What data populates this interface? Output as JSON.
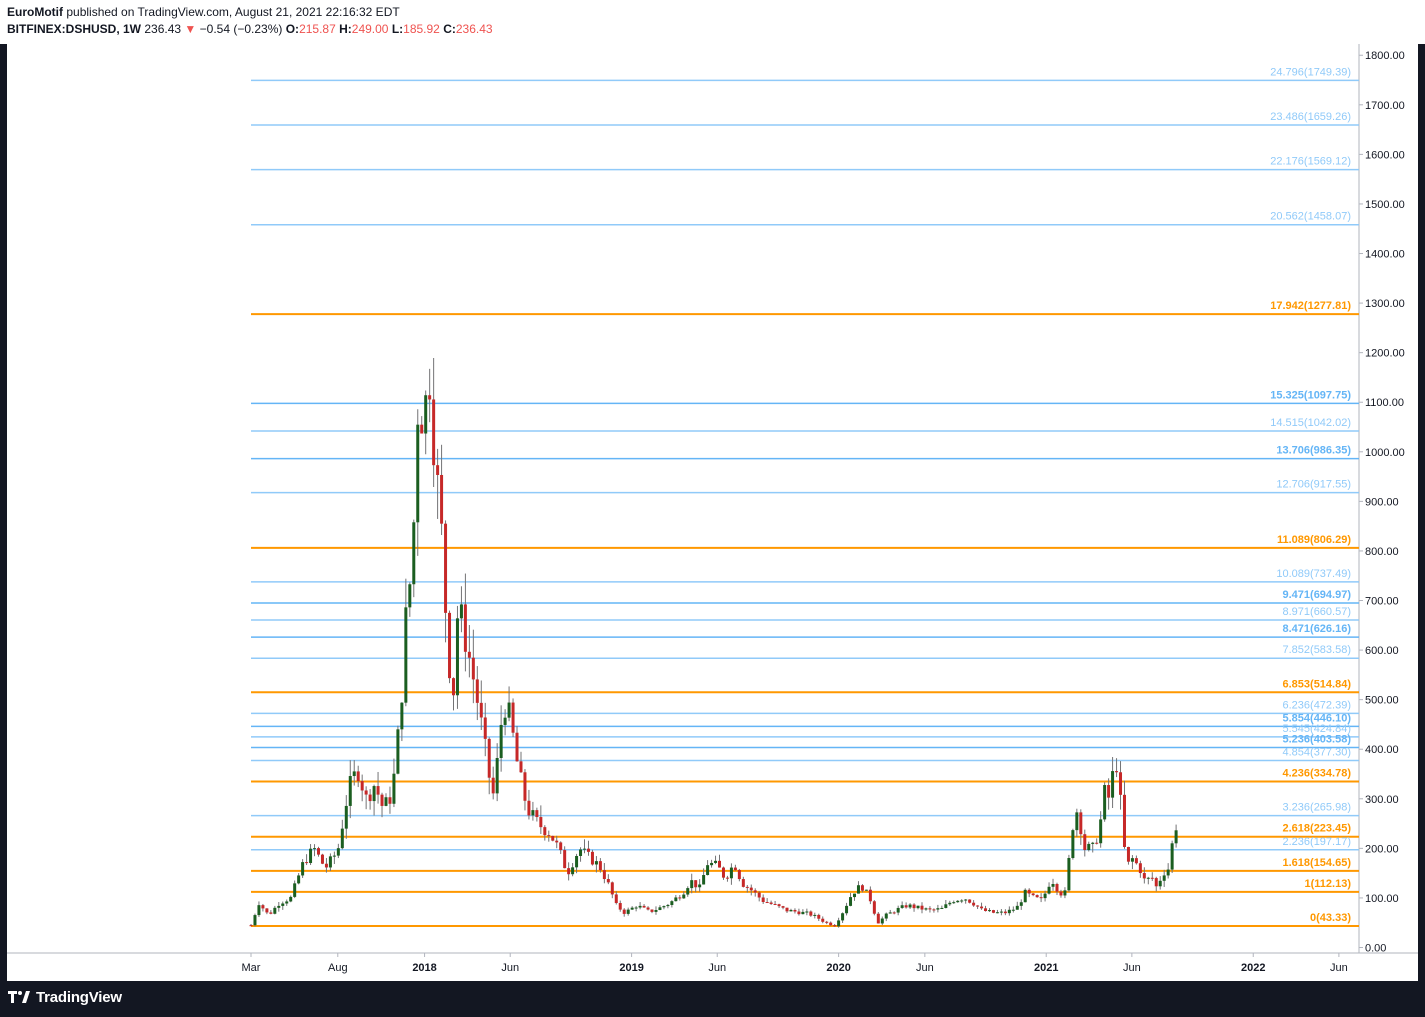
{
  "header": {
    "author": "EuroMotif",
    "published_text": "published on TradingView.com, August 21, 2021 22:16:32 EDT",
    "symbol": "BITFINEX:DSHUSD, 1W",
    "last": "236.43",
    "change_arrow": "▼",
    "change": "−0.54 (−0.23%)",
    "open_label": "O:",
    "open": "215.87",
    "high_label": "H:",
    "high": "249.00",
    "low_label": "L:",
    "low": "185.92",
    "close_label": "C:",
    "close": "236.43"
  },
  "footer": {
    "brand": "TradingView"
  },
  "colors": {
    "up": "#26a69a",
    "down": "#ef5350",
    "candle_up": "#1b5e20",
    "candle_down": "#c62828",
    "orange": "#ff9800",
    "blue": "#90caf9",
    "blue_dark": "#64b5f6"
  },
  "chart_data": {
    "type": "candlestick",
    "symbol": "BITFINEX:DSHUSD",
    "interval": "1W",
    "y_axis": {
      "min": 0,
      "max": 1800,
      "ticks": [
        "0.00",
        "100.00",
        "200.00",
        "300.00",
        "400.00",
        "500.00",
        "600.00",
        "700.00",
        "800.00",
        "900.00",
        "1000.00",
        "1100.00",
        "1200.00",
        "1300.00",
        "1400.00",
        "1500.00",
        "1600.00",
        "1700.00",
        "1800.00"
      ]
    },
    "x_axis": {
      "labels": [
        "Mar",
        "Aug",
        "2018",
        "Jun",
        "2019",
        "Jun",
        "2020",
        "Jun",
        "2021",
        "Jun",
        "2022",
        "Jun"
      ],
      "label_dates": [
        "2017-03-01",
        "2017-08-01",
        "2018-01-01",
        "2018-06-01",
        "2019-01-01",
        "2019-06-01",
        "2020-01-01",
        "2020-06-01",
        "2021-01-01",
        "2021-06-01",
        "2022-01-01",
        "2022-06-01"
      ]
    },
    "fib_levels": [
      {
        "label": "24.796(1749.39)",
        "value": 1749.39,
        "color": "blue"
      },
      {
        "label": "23.486(1659.26)",
        "value": 1659.26,
        "color": "blue"
      },
      {
        "label": "22.176(1569.12)",
        "value": 1569.12,
        "color": "blue"
      },
      {
        "label": "20.562(1458.07)",
        "value": 1458.07,
        "color": "blue"
      },
      {
        "label": "17.942(1277.81)",
        "value": 1277.81,
        "color": "orange"
      },
      {
        "label": "15.325(1097.75)",
        "value": 1097.75,
        "color": "blue_dark"
      },
      {
        "label": "14.515(1042.02)",
        "value": 1042.02,
        "color": "blue"
      },
      {
        "label": "13.706(986.35)",
        "value": 986.35,
        "color": "blue_dark"
      },
      {
        "label": "12.706(917.55)",
        "value": 917.55,
        "color": "blue"
      },
      {
        "label": "11.089(806.29)",
        "value": 806.29,
        "color": "orange"
      },
      {
        "label": "10.089(737.49)",
        "value": 737.49,
        "color": "blue"
      },
      {
        "label": "9.471(694.97)",
        "value": 694.97,
        "color": "blue_dark"
      },
      {
        "label": "8.971(660.57)",
        "value": 660.57,
        "color": "blue"
      },
      {
        "label": "8.471(626.16)",
        "value": 626.16,
        "color": "blue_dark"
      },
      {
        "label": "7.852(583.58)",
        "value": 583.58,
        "color": "blue"
      },
      {
        "label": "6.853(514.84)",
        "value": 514.84,
        "color": "orange"
      },
      {
        "label": "6.236(472.39)",
        "value": 472.39,
        "color": "blue"
      },
      {
        "label": "5.854(446.10)",
        "value": 446.1,
        "color": "blue_dark"
      },
      {
        "label": "5.545(424.84)",
        "value": 424.84,
        "color": "blue"
      },
      {
        "label": "5.236(403.58)",
        "value": 403.58,
        "color": "blue_dark"
      },
      {
        "label": "4.854(377.30)",
        "value": 377.3,
        "color": "blue"
      },
      {
        "label": "4.236(334.78)",
        "value": 334.78,
        "color": "orange"
      },
      {
        "label": "3.236(265.98)",
        "value": 265.98,
        "color": "blue"
      },
      {
        "label": "2.618(223.45)",
        "value": 223.45,
        "color": "orange"
      },
      {
        "label": "2.236(197.17)",
        "value": 197.17,
        "color": "blue"
      },
      {
        "label": "1.618(154.65)",
        "value": 154.65,
        "color": "orange"
      },
      {
        "label": "1(112.13)",
        "value": 112.13,
        "color": "orange"
      },
      {
        "label": "0(43.33)",
        "value": 43.33,
        "color": "orange"
      }
    ],
    "fib_start_date": "2017-03-01",
    "price_path": [
      [
        "2017-03-01",
        45
      ],
      [
        "2017-03-15",
        90
      ],
      [
        "2017-04-01",
        65
      ],
      [
        "2017-04-20",
        90
      ],
      [
        "2017-05-10",
        100
      ],
      [
        "2017-06-01",
        170
      ],
      [
        "2017-06-20",
        200
      ],
      [
        "2017-07-10",
        160
      ],
      [
        "2017-08-01",
        195
      ],
      [
        "2017-08-20",
        320
      ],
      [
        "2017-09-05",
        360
      ],
      [
        "2017-09-20",
        300
      ],
      [
        "2017-10-05",
        330
      ],
      [
        "2017-10-20",
        280
      ],
      [
        "2017-11-05",
        310
      ],
      [
        "2017-11-20",
        480
      ],
      [
        "2017-12-01",
        700
      ],
      [
        "2017-12-10",
        760
      ],
      [
        "2017-12-20",
        1090
      ],
      [
        "2018-01-01",
        1080
      ],
      [
        "2018-01-10",
        1160
      ],
      [
        "2018-01-20",
        980
      ],
      [
        "2018-02-01",
        820
      ],
      [
        "2018-02-10",
        620
      ],
      [
        "2018-02-20",
        500
      ],
      [
        "2018-03-01",
        690
      ],
      [
        "2018-03-15",
        620
      ],
      [
        "2018-04-01",
        520
      ],
      [
        "2018-04-15",
        420
      ],
      [
        "2018-05-01",
        300
      ],
      [
        "2018-05-10",
        380
      ],
      [
        "2018-05-20",
        500
      ],
      [
        "2018-06-01",
        460
      ],
      [
        "2018-06-15",
        360
      ],
      [
        "2018-07-01",
        280
      ],
      [
        "2018-07-20",
        250
      ],
      [
        "2018-08-10",
        230
      ],
      [
        "2018-08-25",
        200
      ],
      [
        "2018-09-10",
        150
      ],
      [
        "2018-10-01",
        200
      ],
      [
        "2018-10-20",
        180
      ],
      [
        "2018-11-05",
        165
      ],
      [
        "2018-11-20",
        130
      ],
      [
        "2018-12-05",
        85
      ],
      [
        "2018-12-20",
        70
      ],
      [
        "2019-01-10",
        85
      ],
      [
        "2019-02-01",
        72
      ],
      [
        "2019-02-20",
        80
      ],
      [
        "2019-03-10",
        90
      ],
      [
        "2019-04-01",
        110
      ],
      [
        "2019-04-15",
        135
      ],
      [
        "2019-05-01",
        120
      ],
      [
        "2019-05-15",
        170
      ],
      [
        "2019-06-01",
        165
      ],
      [
        "2019-06-15",
        140
      ],
      [
        "2019-07-01",
        170
      ],
      [
        "2019-07-15",
        130
      ],
      [
        "2019-08-01",
        115
      ],
      [
        "2019-08-20",
        95
      ],
      [
        "2019-09-10",
        85
      ],
      [
        "2019-10-01",
        75
      ],
      [
        "2019-10-20",
        72
      ],
      [
        "2019-11-10",
        68
      ],
      [
        "2019-11-25",
        60
      ],
      [
        "2019-12-10",
        50
      ],
      [
        "2019-12-25",
        45
      ],
      [
        "2020-01-10",
        75
      ],
      [
        "2020-01-25",
        110
      ],
      [
        "2020-02-10",
        125
      ],
      [
        "2020-02-25",
        100
      ],
      [
        "2020-03-10",
        50
      ],
      [
        "2020-03-25",
        65
      ],
      [
        "2020-04-10",
        75
      ],
      [
        "2020-05-01",
        85
      ],
      [
        "2020-05-20",
        80
      ],
      [
        "2020-06-10",
        75
      ],
      [
        "2020-07-01",
        78
      ],
      [
        "2020-07-20",
        95
      ],
      [
        "2020-08-10",
        100
      ],
      [
        "2020-08-25",
        90
      ],
      [
        "2020-09-10",
        75
      ],
      [
        "2020-10-01",
        70
      ],
      [
        "2020-10-20",
        70
      ],
      [
        "2020-11-10",
        80
      ],
      [
        "2020-11-25",
        110
      ],
      [
        "2020-12-10",
        100
      ],
      [
        "2020-12-25",
        95
      ],
      [
        "2021-01-10",
        140
      ],
      [
        "2021-01-25",
        110
      ],
      [
        "2021-02-05",
        110
      ],
      [
        "2021-02-15",
        240
      ],
      [
        "2021-02-25",
        280
      ],
      [
        "2021-03-10",
        200
      ],
      [
        "2021-03-25",
        200
      ],
      [
        "2021-04-05",
        240
      ],
      [
        "2021-04-15",
        320
      ],
      [
        "2021-04-25",
        290
      ],
      [
        "2021-05-01",
        400
      ],
      [
        "2021-05-08",
        350
      ],
      [
        "2021-05-15",
        250
      ],
      [
        "2021-05-22",
        160
      ],
      [
        "2021-06-01",
        180
      ],
      [
        "2021-06-15",
        160
      ],
      [
        "2021-06-25",
        130
      ],
      [
        "2021-07-05",
        145
      ],
      [
        "2021-07-15",
        120
      ],
      [
        "2021-07-25",
        150
      ],
      [
        "2021-08-05",
        160
      ],
      [
        "2021-08-12",
        215
      ],
      [
        "2021-08-21",
        236.43
      ]
    ],
    "last_price": 236.43
  }
}
